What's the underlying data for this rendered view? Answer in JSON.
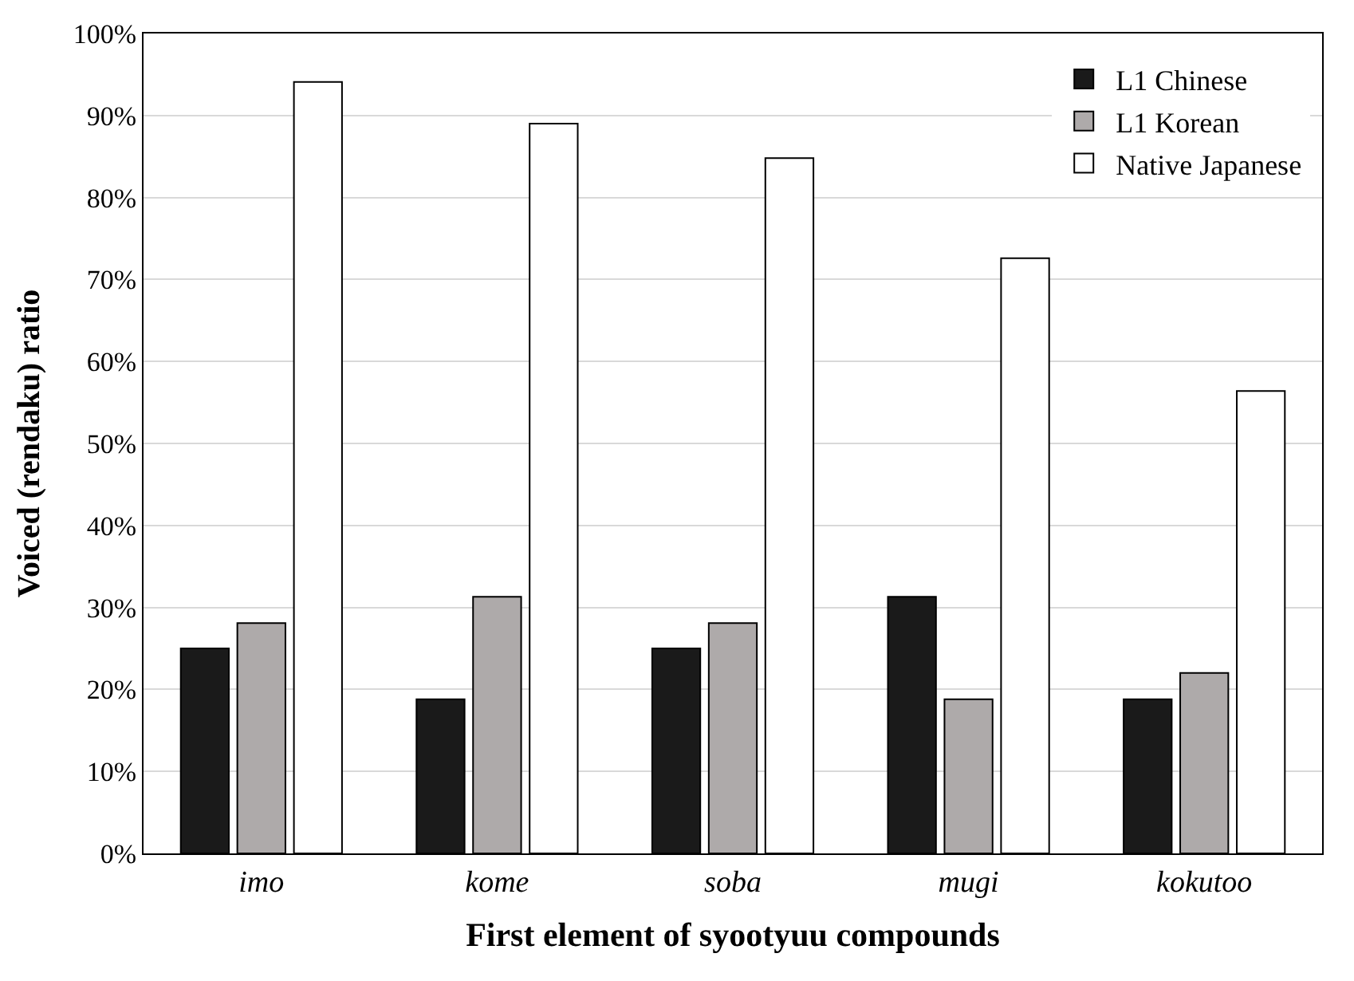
{
  "chart_data": {
    "type": "bar",
    "xlabel": "First element of syootyuu compounds",
    "ylabel": "Voiced (rendaku) ratio",
    "categories": [
      "imo",
      "kome",
      "soba",
      "mugi",
      "kokutoo"
    ],
    "series": [
      {
        "name": "L1 Chinese",
        "color": "#1a1a1a",
        "values": [
          25.0,
          18.8,
          25.0,
          31.3,
          18.8
        ]
      },
      {
        "name": "L1 Korean",
        "color": "#aeaaaa",
        "values": [
          28.1,
          31.3,
          28.1,
          18.8,
          22.0
        ]
      },
      {
        "name": "Native Japanese",
        "color": "#ffffff",
        "values": [
          94.1,
          89.0,
          84.8,
          72.6,
          56.4
        ]
      }
    ],
    "ylim": [
      0,
      100
    ],
    "yticks": [
      {
        "value": 0,
        "label": "0%"
      },
      {
        "value": 10,
        "label": "10%"
      },
      {
        "value": 20,
        "label": "20%"
      },
      {
        "value": 30,
        "label": "30%"
      },
      {
        "value": 40,
        "label": "40%"
      },
      {
        "value": 50,
        "label": "50%"
      },
      {
        "value": 60,
        "label": "60%"
      },
      {
        "value": 70,
        "label": "70%"
      },
      {
        "value": 80,
        "label": "80%"
      },
      {
        "value": 90,
        "label": "90%"
      },
      {
        "value": 100,
        "label": "100%"
      }
    ],
    "grid": "y",
    "legend": "top right"
  }
}
